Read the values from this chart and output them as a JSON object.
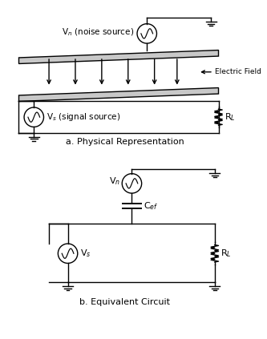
{
  "bg_color": "#ffffff",
  "line_color": "#000000",
  "text_color": "#000000",
  "fig_width": 3.33,
  "fig_height": 4.23,
  "dpi": 100,
  "label_a": "a. Physical Representation",
  "label_b": "b. Equivalent Circuit",
  "noise_source_label": "V$_n$ (noise source)",
  "signal_source_label": "V$_s$ (signal source)",
  "electric_field_label": "Electric Field",
  "RL_label": "R$_L$",
  "Vn_label": "V$_n$",
  "Vs_label": "V$_s$",
  "Cef_label": "C$_{ef}$"
}
